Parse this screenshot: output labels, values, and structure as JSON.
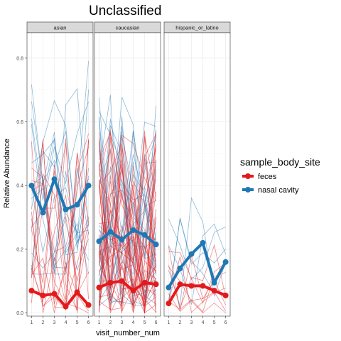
{
  "chart_data": {
    "type": "line",
    "title": "Unclassified",
    "xlabel": "visit_number_num",
    "ylabel": "Relative Abundance",
    "x": [
      1,
      2,
      3,
      4,
      5,
      6
    ],
    "x_ticks": [
      "1",
      "2",
      "3",
      "4",
      "5",
      "6"
    ],
    "y_ticks": [
      "0.0",
      "0.2",
      "0.4",
      "0.6",
      "0.8"
    ],
    "ylim": [
      -0.01,
      0.88
    ],
    "grid": true,
    "legend": {
      "title": "sample_body_site",
      "position": "right",
      "entries": [
        {
          "label": "feces",
          "color": "#e31a1c"
        },
        {
          "label": "nasal cavity",
          "color": "#1f78b4"
        }
      ]
    },
    "panels": [
      {
        "strip": "asian",
        "series": [
          {
            "name": "feces",
            "color": "#e31a1c",
            "values": [
              0.07,
              0.055,
              0.06,
              0.02,
              0.065,
              0.025
            ]
          },
          {
            "name": "nasal cavity",
            "color": "#1f78b4",
            "values": [
              0.4,
              0.315,
              0.42,
              0.325,
              0.34,
              0.4
            ]
          }
        ]
      },
      {
        "strip": "caucasian",
        "series": [
          {
            "name": "feces",
            "color": "#e31a1c",
            "values": [
              0.08,
              0.095,
              0.1,
              0.07,
              0.095,
              0.09
            ]
          },
          {
            "name": "nasal cavity",
            "color": "#1f78b4",
            "values": [
              0.225,
              0.255,
              0.23,
              0.26,
              0.245,
              0.215
            ]
          }
        ]
      },
      {
        "strip": "hispanic_or_latino",
        "series": [
          {
            "name": "feces",
            "color": "#e31a1c",
            "values": [
              0.03,
              0.09,
              0.085,
              0.085,
              0.07,
              0.055
            ]
          },
          {
            "name": "nasal cavity",
            "color": "#1f78b4",
            "values": [
              0.08,
              0.14,
              0.185,
              0.22,
              0.095,
              0.16
            ]
          }
        ]
      }
    ]
  }
}
